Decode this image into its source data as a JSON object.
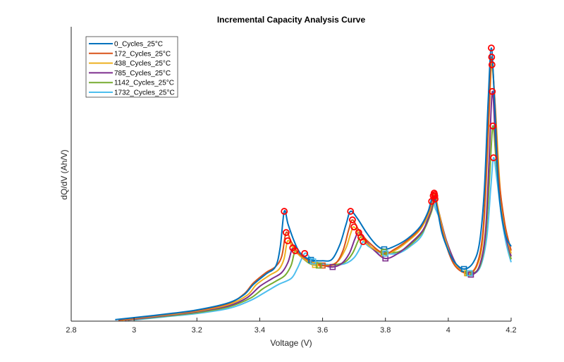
{
  "chart_data": {
    "type": "line",
    "title": "Incremental Capacity Analysis Curve",
    "xlabel": "Voltage (V)",
    "ylabel": "dQ/dV (Ah/V)",
    "xlim": [
      2.8,
      4.2
    ],
    "ylim": [
      0,
      100
    ],
    "xticks": [
      "2.8",
      "3",
      "3.2",
      "3.4",
      "3.6",
      "3.8",
      "4",
      "4.2"
    ],
    "yticks_shown": false,
    "grid": false,
    "legend_position": "top-left",
    "peak_marker_color": "#FF0000",
    "series": [
      {
        "name": "0_Cycles_25°C",
        "color": "#0072BD",
        "points": [
          [
            2.94,
            0.5
          ],
          [
            3.0,
            1.2
          ],
          [
            3.1,
            2.4
          ],
          [
            3.2,
            3.8
          ],
          [
            3.3,
            6.2
          ],
          [
            3.35,
            9
          ],
          [
            3.38,
            12.5
          ],
          [
            3.42,
            16
          ],
          [
            3.45,
            18.5
          ],
          [
            3.465,
            25
          ],
          [
            3.478,
            37.3
          ],
          [
            3.49,
            33
          ],
          [
            3.51,
            27
          ],
          [
            3.53,
            23
          ],
          [
            3.563,
            20.8
          ],
          [
            3.6,
            20.5
          ],
          [
            3.63,
            21
          ],
          [
            3.655,
            26
          ],
          [
            3.675,
            33
          ],
          [
            3.689,
            37.3
          ],
          [
            3.71,
            35
          ],
          [
            3.74,
            30
          ],
          [
            3.77,
            26
          ],
          [
            3.796,
            24.4
          ],
          [
            3.83,
            25.5
          ],
          [
            3.87,
            28
          ],
          [
            3.91,
            32
          ],
          [
            3.935,
            37
          ],
          [
            3.952,
            42.6
          ],
          [
            3.965,
            38
          ],
          [
            3.98,
            30
          ],
          [
            4.0,
            24
          ],
          [
            4.02,
            20
          ],
          [
            4.05,
            17.7
          ],
          [
            4.08,
            20
          ],
          [
            4.1,
            27
          ],
          [
            4.115,
            45
          ],
          [
            4.127,
            75
          ],
          [
            4.137,
            92.8
          ],
          [
            4.147,
            75
          ],
          [
            4.16,
            45
          ],
          [
            4.18,
            30
          ],
          [
            4.2,
            25.4
          ]
        ],
        "peaks": [
          [
            3.478,
            37.3
          ],
          [
            3.689,
            37.3
          ],
          [
            3.952,
            42.6
          ],
          [
            4.137,
            92.8
          ]
        ],
        "valleys": [
          [
            3.563,
            20.8
          ],
          [
            3.796,
            24.4
          ],
          [
            4.05,
            17.7
          ]
        ]
      },
      {
        "name": "172_Cycles_25°C",
        "color": "#D95319",
        "points": [
          [
            2.95,
            0.3
          ],
          [
            3.0,
            1.0
          ],
          [
            3.1,
            2.3
          ],
          [
            3.2,
            3.6
          ],
          [
            3.3,
            6.0
          ],
          [
            3.35,
            9.2
          ],
          [
            3.38,
            13
          ],
          [
            3.42,
            16.5
          ],
          [
            3.45,
            18.5
          ],
          [
            3.47,
            22
          ],
          [
            3.484,
            30.1
          ],
          [
            3.5,
            27
          ],
          [
            3.52,
            23.5
          ],
          [
            3.55,
            21
          ],
          [
            3.6,
            18.9
          ],
          [
            3.64,
            19.5
          ],
          [
            3.665,
            24
          ],
          [
            3.683,
            31
          ],
          [
            3.695,
            34.4
          ],
          [
            3.715,
            31
          ],
          [
            3.745,
            27
          ],
          [
            3.794,
            23
          ],
          [
            3.83,
            24.5
          ],
          [
            3.87,
            27.5
          ],
          [
            3.91,
            31.5
          ],
          [
            3.94,
            38
          ],
          [
            3.955,
            43.5
          ],
          [
            3.968,
            37
          ],
          [
            3.99,
            27
          ],
          [
            4.02,
            19
          ],
          [
            4.06,
            16.3
          ],
          [
            4.09,
            19
          ],
          [
            4.11,
            30
          ],
          [
            4.123,
            55
          ],
          [
            4.132,
            78
          ],
          [
            4.138,
            89.7
          ],
          [
            4.148,
            75
          ],
          [
            4.16,
            50
          ],
          [
            4.18,
            33
          ],
          [
            4.2,
            24
          ]
        ],
        "peaks": [
          [
            3.484,
            30.1
          ],
          [
            3.695,
            34.4
          ],
          [
            3.955,
            43.5
          ],
          [
            4.138,
            89.7
          ]
        ],
        "valleys": [
          [
            3.6,
            18.9
          ],
          [
            3.794,
            23
          ],
          [
            4.06,
            16.3
          ]
        ]
      },
      {
        "name": "438_Cycles_25°C",
        "color": "#EDB120",
        "points": [
          [
            2.96,
            0.3
          ],
          [
            3.0,
            0.9
          ],
          [
            3.1,
            2.1
          ],
          [
            3.2,
            3.4
          ],
          [
            3.3,
            5.6
          ],
          [
            3.36,
            8.8
          ],
          [
            3.39,
            12.5
          ],
          [
            3.43,
            15.5
          ],
          [
            3.46,
            17.5
          ],
          [
            3.477,
            21
          ],
          [
            3.489,
            27.3
          ],
          [
            3.505,
            25
          ],
          [
            3.53,
            22
          ],
          [
            3.576,
            19.1
          ],
          [
            3.62,
            19
          ],
          [
            3.65,
            20.5
          ],
          [
            3.675,
            25
          ],
          [
            3.69,
            30
          ],
          [
            3.7,
            32
          ],
          [
            3.72,
            29
          ],
          [
            3.75,
            25.5
          ],
          [
            3.796,
            23
          ],
          [
            3.83,
            24
          ],
          [
            3.87,
            27
          ],
          [
            3.91,
            31
          ],
          [
            3.94,
            37
          ],
          [
            3.956,
            43
          ],
          [
            3.97,
            37
          ],
          [
            3.99,
            28
          ],
          [
            4.02,
            19.5
          ],
          [
            4.06,
            16.3
          ],
          [
            4.09,
            18.5
          ],
          [
            4.11,
            28
          ],
          [
            4.124,
            55
          ],
          [
            4.133,
            78
          ],
          [
            4.139,
            87.1
          ],
          [
            4.15,
            72
          ],
          [
            4.165,
            45
          ],
          [
            4.18,
            32
          ],
          [
            4.2,
            23
          ]
        ],
        "peaks": [
          [
            3.489,
            27.3
          ],
          [
            3.7,
            32
          ],
          [
            3.956,
            43
          ],
          [
            4.139,
            87.1
          ]
        ],
        "valleys": [
          [
            3.576,
            19.1
          ],
          [
            3.796,
            23
          ],
          [
            4.06,
            16.3
          ]
        ]
      },
      {
        "name": "785_Cycles_25°C",
        "color": "#7E2F8E",
        "points": [
          [
            2.97,
            0.3
          ],
          [
            3.0,
            0.7
          ],
          [
            3.1,
            1.9
          ],
          [
            3.2,
            3.2
          ],
          [
            3.3,
            5.2
          ],
          [
            3.36,
            8
          ],
          [
            3.4,
            11.8
          ],
          [
            3.44,
            14.5
          ],
          [
            3.47,
            16.5
          ],
          [
            3.49,
            20
          ],
          [
            3.505,
            24.9
          ],
          [
            3.52,
            23
          ],
          [
            3.55,
            20.5
          ],
          [
            3.6,
            19
          ],
          [
            3.632,
            18.4
          ],
          [
            3.66,
            19.5
          ],
          [
            3.685,
            23
          ],
          [
            3.703,
            28
          ],
          [
            3.715,
            30.1
          ],
          [
            3.735,
            27.5
          ],
          [
            3.765,
            24
          ],
          [
            3.8,
            21.3
          ],
          [
            3.84,
            23
          ],
          [
            3.88,
            26.5
          ],
          [
            3.92,
            31
          ],
          [
            3.945,
            37.5
          ],
          [
            3.957,
            42.5
          ],
          [
            3.97,
            37
          ],
          [
            3.995,
            27
          ],
          [
            4.03,
            18.5
          ],
          [
            4.072,
            15.8
          ],
          [
            4.1,
            19
          ],
          [
            4.118,
            30
          ],
          [
            4.13,
            55
          ],
          [
            4.14,
            78
          ],
          [
            4.15,
            62
          ],
          [
            4.165,
            40
          ],
          [
            4.18,
            30
          ],
          [
            4.2,
            22
          ]
        ],
        "peaks": [
          [
            3.505,
            24.9
          ],
          [
            3.715,
            30.1
          ],
          [
            3.957,
            42.5
          ],
          [
            4.14,
            78
          ]
        ],
        "valleys": [
          [
            3.632,
            18.4
          ],
          [
            3.8,
            21.3
          ],
          [
            4.072,
            15.8
          ]
        ]
      },
      {
        "name": "1142_Cycles_25°C",
        "color": "#77AC30",
        "points": [
          [
            2.98,
            0.3
          ],
          [
            3.0,
            0.6
          ],
          [
            3.1,
            1.7
          ],
          [
            3.2,
            2.9
          ],
          [
            3.3,
            4.8
          ],
          [
            3.37,
            7.8
          ],
          [
            3.41,
            11
          ],
          [
            3.45,
            13.5
          ],
          [
            3.48,
            15.5
          ],
          [
            3.5,
            19
          ],
          [
            3.513,
            23.9
          ],
          [
            3.53,
            22
          ],
          [
            3.56,
            19.5
          ],
          [
            3.588,
            18.9
          ],
          [
            3.63,
            19
          ],
          [
            3.67,
            20
          ],
          [
            3.695,
            23
          ],
          [
            3.712,
            27
          ],
          [
            3.722,
            28.5
          ],
          [
            3.74,
            26.5
          ],
          [
            3.77,
            24
          ],
          [
            3.795,
            23.5
          ],
          [
            3.84,
            23.5
          ],
          [
            3.88,
            26
          ],
          [
            3.92,
            30.5
          ],
          [
            3.946,
            37
          ],
          [
            3.958,
            41.5
          ],
          [
            3.97,
            37
          ],
          [
            3.995,
            27
          ],
          [
            4.03,
            18.5
          ],
          [
            4.065,
            16.3
          ],
          [
            4.1,
            18.5
          ],
          [
            4.12,
            30
          ],
          [
            4.132,
            50
          ],
          [
            4.142,
            66.3
          ],
          [
            4.152,
            55
          ],
          [
            4.168,
            38
          ],
          [
            4.185,
            28
          ],
          [
            4.2,
            21
          ]
        ],
        "peaks": [
          [
            3.513,
            23.9
          ],
          [
            3.722,
            28.5
          ],
          [
            3.958,
            41.5
          ],
          [
            4.142,
            66.3
          ]
        ],
        "valleys": [
          [
            3.588,
            18.9
          ],
          [
            3.795,
            23.5
          ],
          [
            4.065,
            16.3
          ]
        ]
      },
      {
        "name": "1732_Cycles_25°C",
        "color": "#4DBEEE",
        "points": [
          [
            3.0,
            0.4
          ],
          [
            3.1,
            1.5
          ],
          [
            3.2,
            2.6
          ],
          [
            3.3,
            4.3
          ],
          [
            3.37,
            7
          ],
          [
            3.42,
            10
          ],
          [
            3.46,
            12.5
          ],
          [
            3.5,
            14.5
          ],
          [
            3.52,
            18
          ],
          [
            3.543,
            23
          ],
          [
            3.56,
            21.5
          ],
          [
            3.57,
            20.3
          ],
          [
            3.62,
            19.2
          ],
          [
            3.67,
            19.5
          ],
          [
            3.7,
            21.5
          ],
          [
            3.72,
            25
          ],
          [
            3.729,
            27
          ],
          [
            3.745,
            25.5
          ],
          [
            3.775,
            23.5
          ],
          [
            3.8,
            23
          ],
          [
            3.84,
            23
          ],
          [
            3.88,
            25.5
          ],
          [
            3.92,
            30
          ],
          [
            3.947,
            40.7
          ],
          [
            3.96,
            38
          ],
          [
            3.975,
            34
          ],
          [
            3.998,
            25
          ],
          [
            4.03,
            18.5
          ],
          [
            4.068,
            16.3
          ],
          [
            4.1,
            18
          ],
          [
            4.122,
            28
          ],
          [
            4.135,
            45
          ],
          [
            4.144,
            55.5
          ],
          [
            4.155,
            48
          ],
          [
            4.17,
            35
          ],
          [
            4.185,
            26
          ],
          [
            4.2,
            20
          ]
        ],
        "peaks": [
          [
            3.543,
            23
          ],
          [
            3.729,
            27
          ],
          [
            3.947,
            40.7
          ],
          [
            4.144,
            55.5
          ]
        ],
        "valleys": [
          [
            3.57,
            20.3
          ],
          [
            3.8,
            23
          ],
          [
            4.068,
            16.3
          ]
        ]
      }
    ]
  }
}
